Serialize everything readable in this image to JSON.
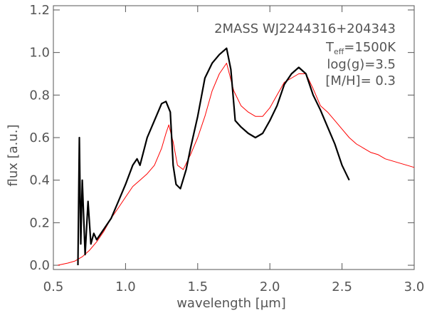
{
  "chart_data": {
    "type": "line",
    "annotation": {
      "name": "2MASS WJ2244316+204343",
      "teff_prefix": "T",
      "teff_sub": "eff",
      "teff_value": "=1500K",
      "logg": "log(g)=3.5",
      "metallicity": "[M/H]= 0.3"
    },
    "xlabel": "wavelength [μm]",
    "ylabel": "flux [a.u.]",
    "xlim": [
      0.5,
      3.0
    ],
    "ylim": [
      -0.02,
      1.22
    ],
    "xticks": [
      "0.5",
      "1.0",
      "1.5",
      "2.0",
      "2.5",
      "3.0"
    ],
    "xtick_values": [
      0.5,
      1.0,
      1.5,
      2.0,
      2.5,
      3.0
    ],
    "yticks": [
      "0.0",
      "0.2",
      "0.4",
      "0.6",
      "0.8",
      "1.0",
      "1.2"
    ],
    "ytick_values": [
      0.0,
      0.2,
      0.4,
      0.6,
      0.8,
      1.0,
      1.2
    ],
    "series": [
      {
        "color": "#ff0000",
        "values_x": [
          0.53,
          0.6,
          0.65,
          0.7,
          0.75,
          0.8,
          0.85,
          0.9,
          0.95,
          1.0,
          1.05,
          1.1,
          1.15,
          1.2,
          1.25,
          1.28,
          1.3,
          1.33,
          1.36,
          1.4,
          1.45,
          1.5,
          1.55,
          1.6,
          1.65,
          1.7,
          1.75,
          1.8,
          1.85,
          1.9,
          1.95,
          2.0,
          2.05,
          2.1,
          2.15,
          2.2,
          2.25,
          2.3,
          2.35,
          2.4,
          2.45,
          2.5,
          2.55,
          2.6,
          2.65,
          2.7,
          2.75,
          2.8,
          2.85,
          2.9,
          2.95,
          3.0
        ],
        "values_y": [
          0.0,
          0.01,
          0.02,
          0.04,
          0.07,
          0.11,
          0.16,
          0.22,
          0.27,
          0.32,
          0.37,
          0.4,
          0.43,
          0.47,
          0.55,
          0.62,
          0.66,
          0.58,
          0.47,
          0.45,
          0.52,
          0.6,
          0.7,
          0.82,
          0.9,
          0.95,
          0.82,
          0.75,
          0.72,
          0.7,
          0.7,
          0.74,
          0.8,
          0.86,
          0.88,
          0.9,
          0.9,
          0.83,
          0.75,
          0.72,
          0.68,
          0.64,
          0.6,
          0.57,
          0.55,
          0.53,
          0.52,
          0.5,
          0.49,
          0.48,
          0.47,
          0.46
        ]
      },
      {
        "color": "#000000",
        "values_x": [
          0.67,
          0.68,
          0.69,
          0.7,
          0.72,
          0.74,
          0.76,
          0.78,
          0.8,
          0.85,
          0.9,
          0.95,
          1.0,
          1.05,
          1.08,
          1.1,
          1.15,
          1.2,
          1.25,
          1.28,
          1.31,
          1.33,
          1.35,
          1.38,
          1.42,
          1.45,
          1.5,
          1.55,
          1.6,
          1.65,
          1.7,
          1.73,
          1.76,
          1.8,
          1.85,
          1.9,
          1.95,
          2.0,
          2.05,
          2.1,
          2.15,
          2.2,
          2.25,
          2.3,
          2.35,
          2.4,
          2.45,
          2.5,
          2.55
        ],
        "values_y": [
          0.0,
          0.6,
          0.1,
          0.4,
          0.05,
          0.3,
          0.1,
          0.15,
          0.12,
          0.17,
          0.22,
          0.3,
          0.38,
          0.47,
          0.5,
          0.47,
          0.6,
          0.68,
          0.76,
          0.77,
          0.72,
          0.47,
          0.38,
          0.36,
          0.45,
          0.55,
          0.7,
          0.88,
          0.95,
          0.99,
          1.02,
          0.92,
          0.68,
          0.65,
          0.62,
          0.6,
          0.62,
          0.68,
          0.75,
          0.85,
          0.9,
          0.93,
          0.9,
          0.8,
          0.73,
          0.65,
          0.57,
          0.47,
          0.4
        ]
      }
    ]
  }
}
